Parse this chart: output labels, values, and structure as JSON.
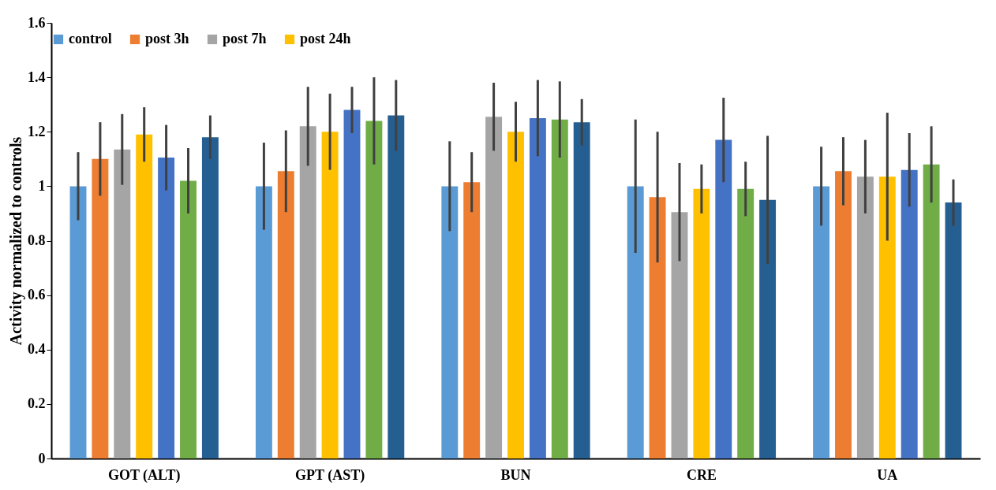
{
  "chart_data": {
    "type": "bar",
    "ylabel": "Activity normalized to controls",
    "categories": [
      "GOT (ALT)",
      "GPT (AST)",
      "BUN",
      "CRE",
      "UA"
    ],
    "series": [
      {
        "name": "control",
        "color": "#5b9bd5",
        "values": [
          1.0,
          1.0,
          1.0,
          1.0,
          1.0
        ],
        "errors": [
          0.125,
          0.16,
          0.165,
          0.245,
          0.145
        ]
      },
      {
        "name": "post 3h",
        "color": "#ed7d31",
        "values": [
          1.1,
          1.055,
          1.015,
          0.96,
          1.055
        ],
        "errors": [
          0.135,
          0.15,
          0.11,
          0.24,
          0.125
        ]
      },
      {
        "name": "post 7h",
        "color": "#a5a5a5",
        "values": [
          1.135,
          1.22,
          1.255,
          0.905,
          1.035
        ],
        "errors": [
          0.13,
          0.145,
          0.125,
          0.18,
          0.135
        ]
      },
      {
        "name": "post 24h",
        "color": "#ffc000",
        "values": [
          1.19,
          1.2,
          1.2,
          0.99,
          1.035
        ],
        "errors": [
          0.1,
          0.14,
          0.11,
          0.09,
          0.235
        ]
      },
      {
        "color": "#4472c4",
        "values": [
          1.105,
          1.28,
          1.25,
          1.17,
          1.06
        ],
        "errors": [
          0.12,
          0.085,
          0.14,
          0.155,
          0.135
        ]
      },
      {
        "color": "#70ad47",
        "values": [
          1.02,
          1.24,
          1.245,
          0.99,
          1.08
        ],
        "errors": [
          0.12,
          0.16,
          0.14,
          0.1,
          0.14
        ]
      },
      {
        "color": "#255e91",
        "values": [
          1.18,
          1.26,
          1.235,
          0.95,
          0.94
        ],
        "errors": [
          0.08,
          0.13,
          0.085,
          0.235,
          0.085
        ]
      }
    ],
    "ylim": [
      0,
      1.6
    ],
    "yticks": [
      0,
      0.2,
      0.4,
      0.6,
      0.8,
      1,
      1.2,
      1.4,
      1.6
    ],
    "grid": false,
    "legend": "top"
  }
}
